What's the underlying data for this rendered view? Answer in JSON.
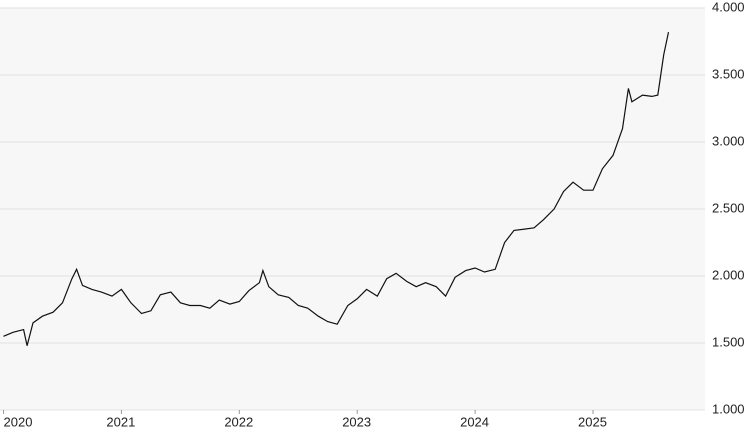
{
  "chart_data": {
    "type": "line",
    "x": [
      2020.0,
      2020.08,
      2020.17,
      2020.2,
      2020.25,
      2020.33,
      2020.42,
      2020.5,
      2020.58,
      2020.62,
      2020.67,
      2020.75,
      2020.83,
      2020.92,
      2021.0,
      2021.08,
      2021.17,
      2021.25,
      2021.33,
      2021.42,
      2021.5,
      2021.58,
      2021.67,
      2021.75,
      2021.83,
      2021.92,
      2022.0,
      2022.08,
      2022.17,
      2022.2,
      2022.25,
      2022.33,
      2022.42,
      2022.5,
      2022.58,
      2022.67,
      2022.75,
      2022.83,
      2022.92,
      2023.0,
      2023.08,
      2023.17,
      2023.25,
      2023.33,
      2023.42,
      2023.5,
      2023.58,
      2023.67,
      2023.75,
      2023.83,
      2023.92,
      2024.0,
      2024.08,
      2024.17,
      2024.25,
      2024.33,
      2024.42,
      2024.5,
      2024.58,
      2024.67,
      2024.75,
      2024.83,
      2024.92,
      2025.0,
      2025.08,
      2025.17,
      2025.25,
      2025.3,
      2025.33,
      2025.42,
      2025.5,
      2025.55,
      2025.6,
      2025.64
    ],
    "series": [
      {
        "color": "#111111",
        "values": [
          1550,
          1580,
          1600,
          1480,
          1650,
          1700,
          1730,
          1800,
          1980,
          2050,
          1930,
          1900,
          1880,
          1850,
          1900,
          1800,
          1720,
          1740,
          1860,
          1880,
          1800,
          1780,
          1780,
          1760,
          1820,
          1790,
          1810,
          1890,
          1950,
          2040,
          1920,
          1860,
          1840,
          1780,
          1760,
          1700,
          1660,
          1640,
          1780,
          1830,
          1900,
          1850,
          1980,
          2020,
          1960,
          1920,
          1950,
          1920,
          1850,
          1990,
          2040,
          2060,
          2030,
          2050,
          2250,
          2340,
          2350,
          2360,
          2420,
          2500,
          2630,
          2700,
          2640,
          2640,
          2800,
          2900,
          3100,
          3400,
          3300,
          3350,
          3340,
          3350,
          3650,
          3820
        ]
      }
    ],
    "xlim": [
      2019.97,
      2025.95
    ],
    "xticks": [
      2020,
      2021,
      2022,
      2023,
      2024,
      2025
    ],
    "ylim": [
      1000,
      4000
    ],
    "yticks": [
      {
        "value": 1000,
        "label": "1.000"
      },
      {
        "value": 1500,
        "label": "1.500"
      },
      {
        "value": 2000,
        "label": "2.000"
      },
      {
        "value": 2500,
        "label": "2.500"
      },
      {
        "value": 3000,
        "label": "3.000"
      },
      {
        "value": 3500,
        "label": "3.500"
      },
      {
        "value": 4000,
        "label": "4.000"
      }
    ],
    "grid": true
  }
}
